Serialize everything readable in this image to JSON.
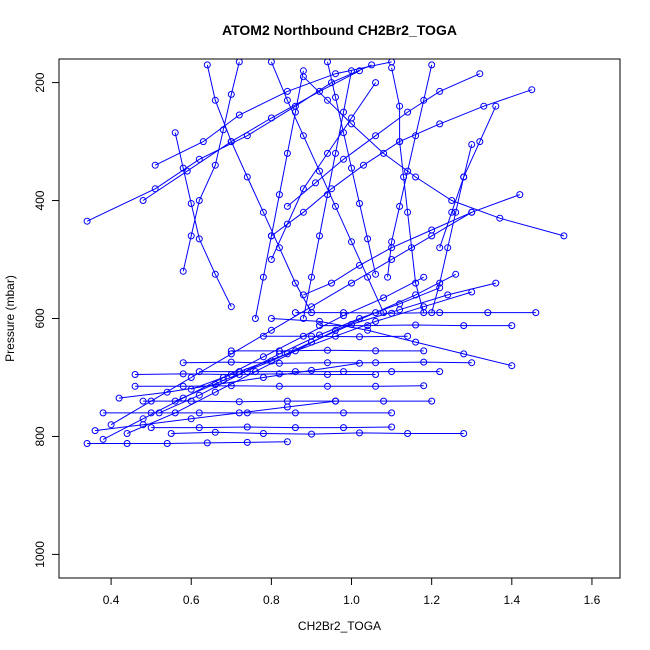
{
  "chart_data": {
    "type": "line",
    "title": "ATOM2 Northbound CH2Br2_TOGA",
    "xlabel": "CH2Br2_TOGA",
    "ylabel": "Pressure (mbar)",
    "xlim": [
      0.27,
      1.67
    ],
    "ylim": [
      1040,
      160
    ],
    "y_reversed": true,
    "grid": false,
    "legend": "none",
    "x_ticks": [
      "0.4",
      "0.6",
      "0.8",
      "1.0",
      "1.2",
      "1.4",
      "1.6"
    ],
    "y_ticks": [
      "200",
      "400",
      "600",
      "800",
      "1000"
    ],
    "marker": "open-circle",
    "colors": {
      "series": "#0000ff",
      "axis": "#000000"
    },
    "series": [
      {
        "values": [
          [
            0.34,
            435
          ],
          [
            0.51,
            380
          ],
          [
            0.62,
            330
          ],
          [
            0.74,
            290
          ],
          [
            0.86,
            240
          ],
          [
            0.95,
            200
          ],
          [
            1.05,
            170
          ]
        ]
      },
      {
        "values": [
          [
            0.48,
            400
          ],
          [
            0.59,
            350
          ],
          [
            0.7,
            300
          ],
          [
            0.8,
            260
          ],
          [
            0.92,
            215
          ],
          [
            1.02,
            180
          ]
        ]
      },
      {
        "values": [
          [
            0.51,
            340
          ],
          [
            0.63,
            300
          ],
          [
            0.72,
            255
          ],
          [
            0.84,
            215
          ],
          [
            0.96,
            185
          ],
          [
            1.1,
            165
          ]
        ]
      },
      {
        "values": [
          [
            1.53,
            460
          ],
          [
            1.37,
            430
          ],
          [
            1.25,
            400
          ],
          [
            1.16,
            360
          ],
          [
            1.08,
            320
          ],
          [
            1.0,
            270
          ],
          [
            0.94,
            230
          ],
          [
            0.88,
            190
          ]
        ]
      },
      {
        "values": [
          [
            1.45,
            212
          ],
          [
            1.33,
            240
          ],
          [
            1.22,
            270
          ],
          [
            1.12,
            300
          ],
          [
            1.03,
            340
          ],
          [
            0.95,
            380
          ],
          [
            0.88,
            420
          ],
          [
            0.8,
            460
          ]
        ]
      },
      {
        "values": [
          [
            1.42,
            390
          ],
          [
            1.3,
            420
          ],
          [
            1.2,
            450
          ],
          [
            1.1,
            480
          ],
          [
            1.02,
            510
          ],
          [
            0.95,
            540
          ],
          [
            0.88,
            560
          ]
        ]
      },
      {
        "values": [
          [
            1.32,
            185
          ],
          [
            1.22,
            215
          ],
          [
            1.14,
            250
          ],
          [
            1.06,
            290
          ],
          [
            0.98,
            330
          ],
          [
            0.91,
            370
          ],
          [
            0.84,
            410
          ]
        ]
      },
      {
        "values": [
          [
            0.4,
            780
          ],
          [
            0.5,
            740
          ],
          [
            0.6,
            700
          ],
          [
            0.7,
            660
          ],
          [
            0.8,
            620
          ],
          [
            0.9,
            580
          ],
          [
            1.0,
            540
          ],
          [
            1.1,
            500
          ],
          [
            1.2,
            460
          ],
          [
            1.3,
            420
          ]
        ]
      },
      {
        "values": [
          [
            0.38,
            805
          ],
          [
            0.48,
            770
          ],
          [
            0.58,
            735
          ],
          [
            0.68,
            700
          ],
          [
            0.78,
            665
          ],
          [
            0.88,
            630
          ],
          [
            0.98,
            595
          ],
          [
            1.08,
            565
          ],
          [
            1.18,
            530
          ]
        ]
      },
      {
        "values": [
          [
            0.44,
            795
          ],
          [
            0.56,
            760
          ],
          [
            0.66,
            725
          ],
          [
            0.76,
            690
          ],
          [
            0.86,
            655
          ],
          [
            0.96,
            620
          ],
          [
            1.06,
            590
          ],
          [
            1.16,
            560
          ],
          [
            1.26,
            525
          ]
        ]
      },
      {
        "values": [
          [
            0.52,
            760
          ],
          [
            0.62,
            730
          ],
          [
            0.72,
            695
          ],
          [
            0.82,
            660
          ],
          [
            0.92,
            628
          ],
          [
            1.02,
            600
          ],
          [
            1.12,
            575
          ],
          [
            1.22,
            548
          ]
        ]
      },
      {
        "values": [
          [
            0.56,
            740
          ],
          [
            0.68,
            705
          ],
          [
            0.8,
            672
          ],
          [
            0.9,
            640
          ],
          [
            1.0,
            610
          ],
          [
            1.12,
            585
          ],
          [
            1.24,
            560
          ],
          [
            1.36,
            540
          ]
        ]
      },
      {
        "values": [
          [
            0.6,
            720
          ],
          [
            0.72,
            690
          ],
          [
            0.84,
            660
          ],
          [
            0.96,
            630
          ],
          [
            1.06,
            605
          ],
          [
            1.18,
            580
          ],
          [
            1.3,
            555
          ]
        ]
      },
      {
        "values": [
          [
            1.28,
            795
          ],
          [
            1.14,
            795
          ],
          [
            1.02,
            794
          ],
          [
            0.9,
            796
          ],
          [
            0.78,
            795
          ],
          [
            0.66,
            793
          ],
          [
            0.55,
            795
          ]
        ]
      },
      {
        "values": [
          [
            0.34,
            812
          ],
          [
            0.44,
            812
          ],
          [
            0.54,
            812
          ],
          [
            0.64,
            811
          ],
          [
            0.74,
            810
          ],
          [
            0.84,
            809
          ]
        ]
      },
      {
        "values": [
          [
            0.38,
            760
          ],
          [
            0.5,
            760
          ],
          [
            0.62,
            760
          ],
          [
            0.74,
            760
          ],
          [
            0.86,
            760
          ],
          [
            0.98,
            760
          ],
          [
            1.1,
            760
          ]
        ]
      },
      {
        "values": [
          [
            0.48,
            740
          ],
          [
            0.6,
            740
          ],
          [
            0.72,
            741
          ],
          [
            0.84,
            740
          ],
          [
            0.96,
            740
          ],
          [
            1.08,
            740
          ],
          [
            1.2,
            740
          ]
        ]
      },
      {
        "values": [
          [
            0.46,
            715
          ],
          [
            0.58,
            715
          ],
          [
            0.7,
            714
          ],
          [
            0.82,
            715
          ],
          [
            0.94,
            715
          ],
          [
            1.06,
            715
          ],
          [
            1.18,
            714
          ]
        ]
      },
      {
        "values": [
          [
            0.5,
            785
          ],
          [
            0.62,
            785
          ],
          [
            0.74,
            784
          ],
          [
            0.86,
            785
          ],
          [
            0.98,
            785
          ],
          [
            1.1,
            784
          ]
        ]
      },
      {
        "values": [
          [
            0.46,
            695
          ],
          [
            0.58,
            694
          ],
          [
            0.7,
            695
          ],
          [
            0.82,
            694
          ],
          [
            0.94,
            695
          ],
          [
            1.06,
            695
          ]
        ]
      },
      {
        "values": [
          [
            0.58,
            675
          ],
          [
            0.7,
            674
          ],
          [
            0.82,
            676
          ],
          [
            0.94,
            675
          ],
          [
            1.06,
            675
          ],
          [
            1.18,
            674
          ],
          [
            1.3,
            675
          ]
        ]
      },
      {
        "values": [
          [
            0.7,
            655
          ],
          [
            0.82,
            655
          ],
          [
            0.94,
            654
          ],
          [
            1.06,
            655
          ],
          [
            1.18,
            655
          ]
        ]
      },
      {
        "values": [
          [
            0.86,
            590
          ],
          [
            0.98,
            590
          ],
          [
            1.1,
            591
          ],
          [
            1.22,
            590
          ],
          [
            1.34,
            590
          ],
          [
            1.46,
            590
          ]
        ]
      },
      {
        "values": [
          [
            0.92,
            612
          ],
          [
            1.04,
            612
          ],
          [
            1.16,
            611
          ],
          [
            1.28,
            612
          ],
          [
            1.4,
            612
          ]
        ]
      },
      {
        "values": [
          [
            0.78,
            630
          ],
          [
            0.9,
            630
          ],
          [
            1.02,
            631
          ],
          [
            1.14,
            630
          ]
        ]
      },
      {
        "values": [
          [
            0.64,
            170
          ],
          [
            0.66,
            230
          ],
          [
            0.7,
            300
          ],
          [
            0.74,
            360
          ],
          [
            0.78,
            420
          ],
          [
            0.82,
            480
          ],
          [
            0.86,
            540
          ],
          [
            0.9,
            590
          ]
        ]
      },
      {
        "values": [
          [
            0.8,
            165
          ],
          [
            0.84,
            230
          ],
          [
            0.88,
            290
          ],
          [
            0.92,
            350
          ],
          [
            0.96,
            410
          ],
          [
            1.0,
            470
          ],
          [
            1.04,
            530
          ],
          [
            1.08,
            590
          ]
        ]
      },
      {
        "values": [
          [
            0.94,
            165
          ],
          [
            0.96,
            225
          ],
          [
            0.98,
            285
          ],
          [
            1.0,
            345
          ],
          [
            1.02,
            405
          ],
          [
            1.04,
            465
          ],
          [
            1.06,
            525
          ]
        ]
      },
      {
        "values": [
          [
            1.1,
            175
          ],
          [
            1.12,
            240
          ],
          [
            1.12,
            300
          ],
          [
            1.13,
            360
          ],
          [
            1.14,
            420
          ],
          [
            1.15,
            480
          ],
          [
            1.16,
            540
          ],
          [
            1.18,
            590
          ]
        ]
      },
      {
        "values": [
          [
            1.2,
            170
          ],
          [
            1.18,
            230
          ],
          [
            1.16,
            290
          ],
          [
            1.14,
            350
          ],
          [
            1.12,
            410
          ],
          [
            1.1,
            470
          ],
          [
            1.09,
            530
          ]
        ]
      },
      {
        "values": [
          [
            0.72,
            165
          ],
          [
            0.7,
            220
          ],
          [
            0.68,
            280
          ],
          [
            0.66,
            340
          ],
          [
            0.62,
            400
          ],
          [
            0.6,
            460
          ],
          [
            0.58,
            520
          ]
        ]
      },
      {
        "values": [
          [
            0.56,
            285
          ],
          [
            0.58,
            345
          ],
          [
            0.6,
            405
          ],
          [
            0.62,
            465
          ],
          [
            0.66,
            525
          ],
          [
            0.7,
            580
          ]
        ]
      },
      {
        "values": [
          [
            1.3,
            305
          ],
          [
            1.28,
            360
          ],
          [
            1.26,
            420
          ],
          [
            1.24,
            480
          ],
          [
            1.22,
            540
          ],
          [
            1.2,
            590
          ]
        ]
      },
      {
        "values": [
          [
            1.36,
            240
          ],
          [
            1.32,
            300
          ],
          [
            1.28,
            360
          ],
          [
            1.25,
            420
          ],
          [
            1.22,
            480
          ]
        ]
      },
      {
        "values": [
          [
            0.88,
            180
          ],
          [
            0.86,
            250
          ],
          [
            0.84,
            320
          ],
          [
            0.82,
            390
          ],
          [
            0.8,
            460
          ],
          [
            0.78,
            530
          ],
          [
            0.76,
            600
          ]
        ]
      },
      {
        "values": [
          [
            1.0,
            180
          ],
          [
            0.98,
            250
          ],
          [
            0.96,
            320
          ],
          [
            0.94,
            390
          ],
          [
            0.92,
            460
          ],
          [
            0.9,
            530
          ],
          [
            0.88,
            600
          ]
        ]
      },
      {
        "values": [
          [
            1.06,
            200
          ],
          [
            1.0,
            260
          ],
          [
            0.94,
            320
          ],
          [
            0.88,
            380
          ],
          [
            0.84,
            440
          ],
          [
            0.8,
            500
          ]
        ]
      },
      {
        "values": [
          [
            1.4,
            680
          ],
          [
            1.28,
            660
          ],
          [
            1.16,
            640
          ],
          [
            1.04,
            620
          ],
          [
            0.92,
            605
          ],
          [
            0.8,
            600
          ]
        ]
      },
      {
        "values": [
          [
            1.22,
            690
          ],
          [
            1.1,
            690
          ],
          [
            0.98,
            690
          ],
          [
            0.86,
            690
          ],
          [
            0.74,
            690
          ],
          [
            0.62,
            690
          ]
        ]
      },
      {
        "values": [
          [
            0.42,
            735
          ],
          [
            0.54,
            725
          ],
          [
            0.66,
            712
          ],
          [
            0.78,
            700
          ],
          [
            0.9,
            688
          ],
          [
            1.02,
            676
          ]
        ]
      },
      {
        "values": [
          [
            0.36,
            790
          ],
          [
            0.48,
            780
          ],
          [
            0.6,
            770
          ],
          [
            0.72,
            760
          ],
          [
            0.84,
            750
          ],
          [
            0.96,
            740
          ]
        ]
      }
    ]
  }
}
